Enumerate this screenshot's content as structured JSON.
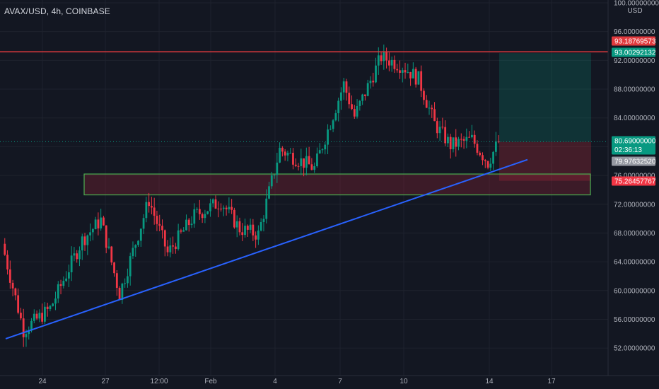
{
  "header": {
    "title": "AVAX/USD, 4h, COINBASE"
  },
  "axis": {
    "currency": "USD"
  },
  "price_labels": [
    {
      "value": "93.18769573",
      "color": "#e03a3e"
    },
    {
      "value": "93.00292132",
      "color": "#089981"
    },
    {
      "value": "80.69000000",
      "color": "#089981",
      "sub": "02:36:13"
    },
    {
      "value": "79.97632520",
      "color": "#9598a1"
    },
    {
      "value": "75.26457767",
      "color": "#f23645"
    }
  ],
  "colors": {
    "up": "#089981",
    "down": "#f23645",
    "resistance": "#e03a3e",
    "trendline": "#2962ff",
    "zone_border": "#4caf50"
  },
  "chart_data": {
    "type": "candlestick",
    "title": "AVAX/USD, 4h, COINBASE",
    "ylim": [
      50.5,
      101
    ],
    "y_ticks": [
      "100.00000000",
      "96.00000000",
      "92.00000000",
      "88.00000000",
      "84.00000000",
      "80.00000000",
      "76.00000000",
      "72.00000000",
      "68.00000000",
      "64.00000000",
      "60.00000000",
      "56.00000000",
      "52.00000000"
    ],
    "x_ticks": [
      "24",
      "27",
      "12:00",
      "Feb",
      "4",
      "7",
      "10",
      "14",
      "17"
    ],
    "grid": true,
    "key_points": {
      "start_price": 67,
      "low": 53.3,
      "high": 95.2,
      "last": 80.69
    },
    "resistance_line": 93.19,
    "support_zone": [
      73.3,
      76.2
    ],
    "trendline": {
      "from": 53.3,
      "to": 78.2
    },
    "position": {
      "entry": 80.69,
      "target": 93.0,
      "stop": 75.26
    }
  }
}
